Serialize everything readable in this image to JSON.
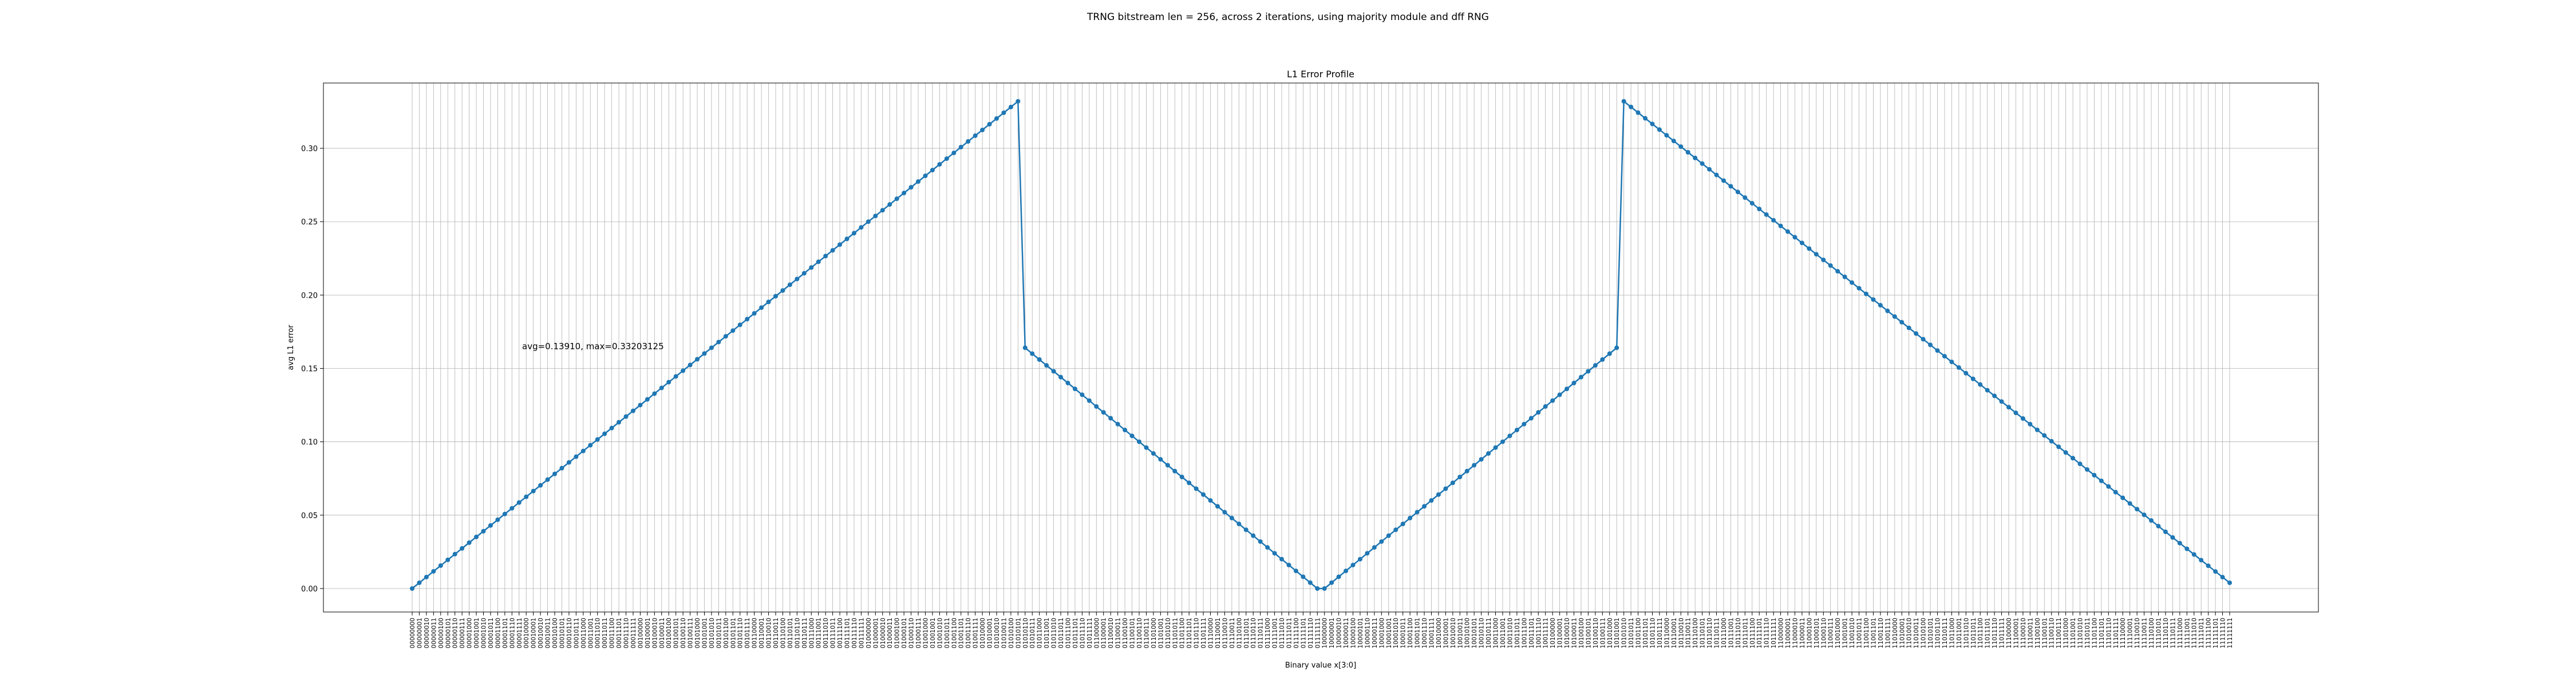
{
  "figure": {
    "suptitle": "TRNG bitstream len = 256, across 2 iterations, using majority module and dff RNG"
  },
  "chart_data": {
    "type": "line",
    "title": "L1 Error Profile",
    "xlabel": "Binary value x[3:0]",
    "ylabel": "avg L1 error",
    "ylim": [
      -0.016,
      0.3445
    ],
    "yticks": [
      0.0,
      0.05,
      0.1,
      0.15,
      0.2,
      0.25,
      0.3
    ],
    "grid": true,
    "annotation": "avg=0.13910, max=0.33203125",
    "x_count": 256,
    "x_tick_labels": "8-bit binary strings 00000000 through 11111111",
    "color": "#1f77b4",
    "marker": "circle",
    "series": [
      {
        "piecewise_linear_segments": [
          {
            "x_start": 0,
            "x_end": 85,
            "y_start": 0.0,
            "y_end": 0.33203125
          },
          {
            "x_start": 86,
            "x_end": 127,
            "y_start": 0.1640625,
            "y_end": 0.0
          },
          {
            "x_start": 128,
            "x_end": 169,
            "y_start": 0.0,
            "y_end": 0.1640625
          },
          {
            "x_start": 170,
            "x_end": 255,
            "y_start": 0.33203125,
            "y_end": 0.00390625
          }
        ]
      }
    ]
  }
}
